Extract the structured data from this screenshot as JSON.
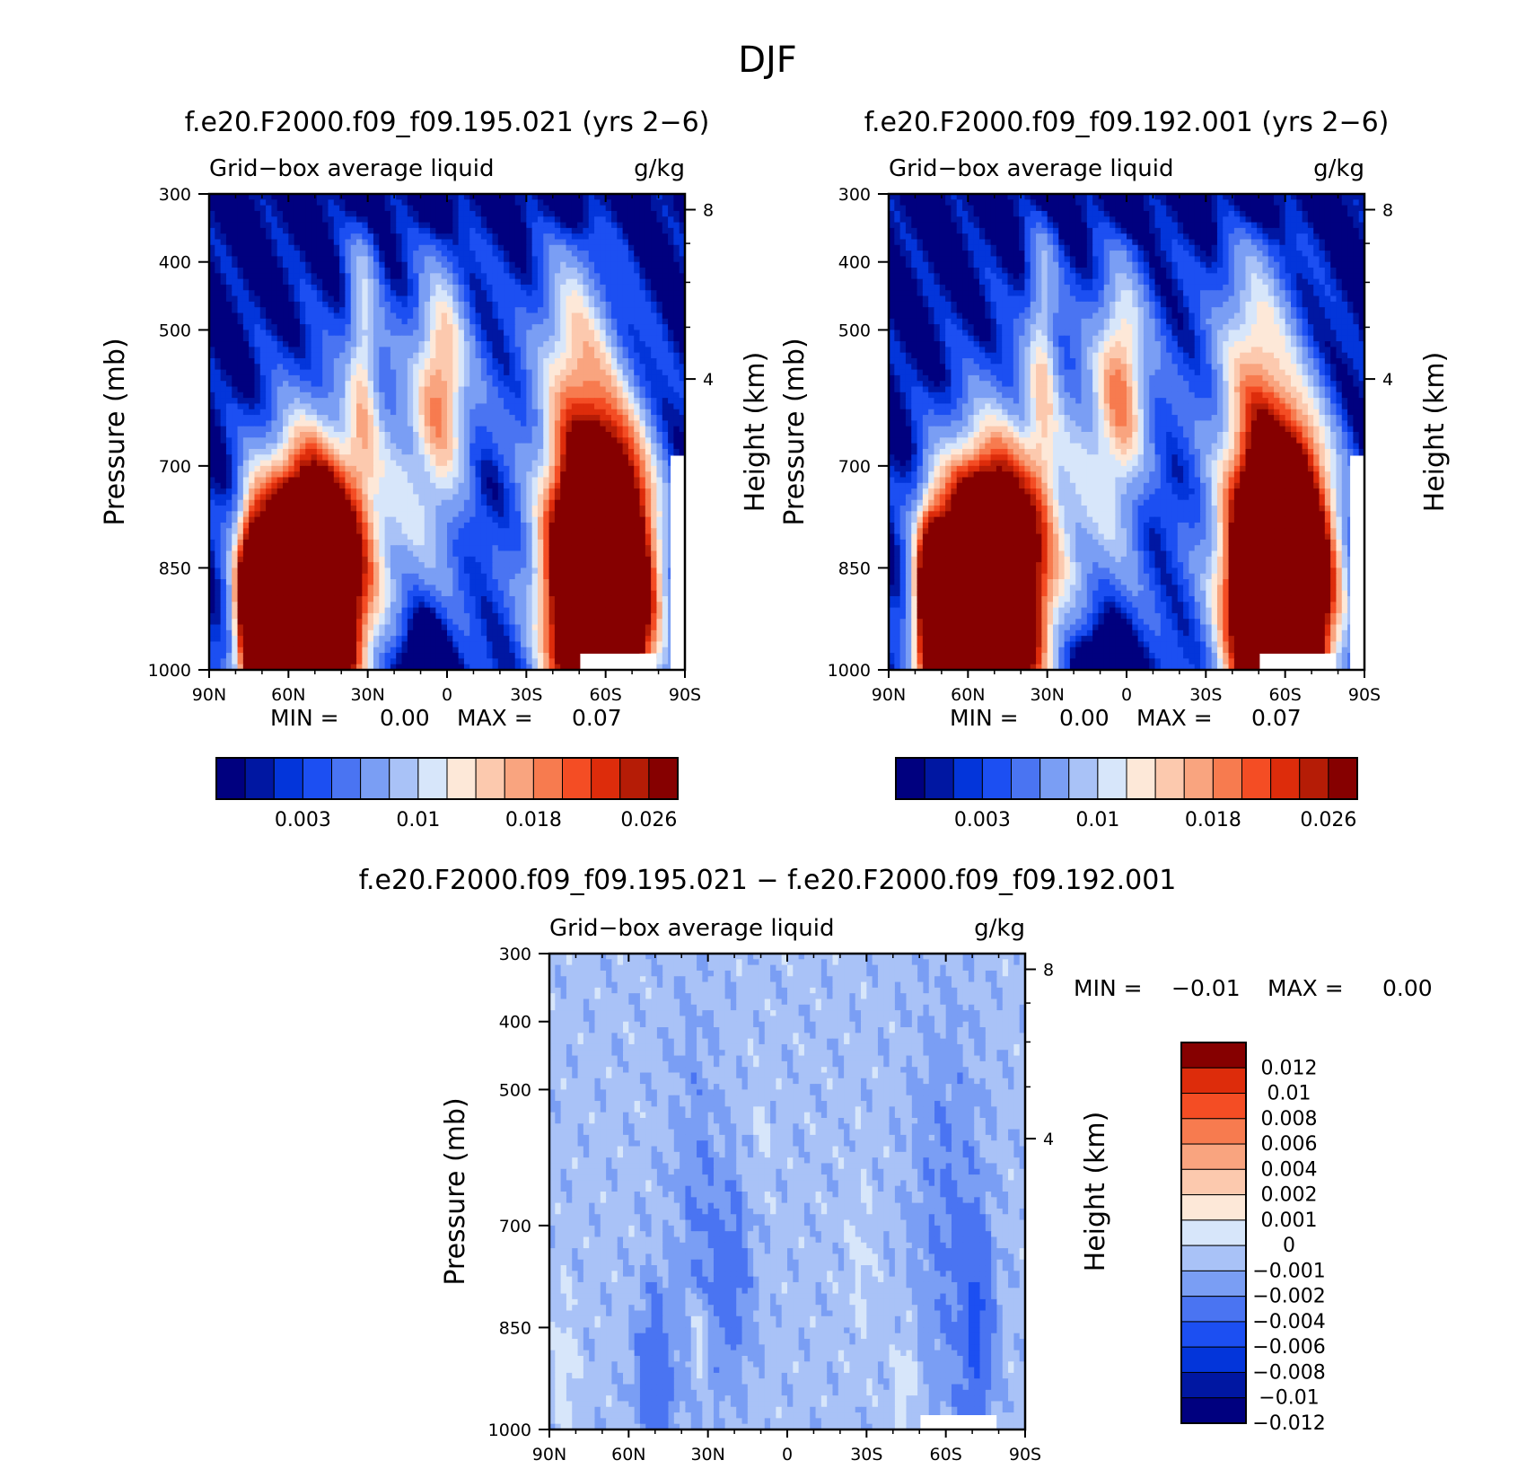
{
  "figure_title": "DJF",
  "colors": {
    "seq_scale": [
      "#00007f",
      "#0017a2",
      "#0335da",
      "#1c4ff2",
      "#4a74f2",
      "#7a9ef4",
      "#a9c2f7",
      "#d7e6fa",
      "#fde8d8",
      "#fcc9ae",
      "#f9a47f",
      "#f77b4f",
      "#f44d24",
      "#dd2c0b",
      "#b51c06",
      "#860000"
    ],
    "div_scale": [
      "#00007f",
      "#0017a2",
      "#0335da",
      "#1c4ff2",
      "#4a74f2",
      "#7a9ef4",
      "#a9c2f7",
      "#d7e6fa",
      "#fde8d8",
      "#fcc9ae",
      "#f9a47f",
      "#f77b4f",
      "#f44d24",
      "#dd2c0b",
      "#860000"
    ]
  },
  "chart_data": [
    {
      "type": "heatmap",
      "panel": "top-left",
      "title": "f.e20.F2000.f09_f09.195.021 (yrs 2−6)",
      "subtitle_left": "Grid−box average liquid",
      "subtitle_right": "g/kg",
      "xlabel": "",
      "ylabel": "Pressure (mb)",
      "ylabel_right": "Height (km)",
      "x_ticks": [
        "90N",
        "60N",
        "30N",
        "0",
        "30S",
        "60S",
        "90S"
      ],
      "y_ticks": [
        "300",
        "400",
        "500",
        "700",
        "850",
        "1000"
      ],
      "y_right_ticks": [
        "8",
        "4"
      ],
      "min_label": "MIN =",
      "min_value": "0.00",
      "max_label": "MAX =",
      "max_value": "0.07",
      "colorbar_labels": [
        "0.003",
        "0.01",
        "0.018",
        "0.026"
      ],
      "ylim": [
        300,
        1000
      ],
      "data_range": [
        0.0,
        0.07
      ]
    },
    {
      "type": "heatmap",
      "panel": "top-right",
      "title": "f.e20.F2000.f09_f09.192.001 (yrs 2−6)",
      "subtitle_left": "Grid−box average liquid",
      "subtitle_right": "g/kg",
      "xlabel": "",
      "ylabel": "Pressure (mb)",
      "ylabel_right": "Height (km)",
      "x_ticks": [
        "90N",
        "60N",
        "30N",
        "0",
        "30S",
        "60S",
        "90S"
      ],
      "y_ticks": [
        "300",
        "400",
        "500",
        "700",
        "850",
        "1000"
      ],
      "y_right_ticks": [
        "8",
        "4"
      ],
      "min_label": "MIN =",
      "min_value": "0.00",
      "max_label": "MAX =",
      "max_value": "0.07",
      "colorbar_labels": [
        "0.003",
        "0.01",
        "0.018",
        "0.026"
      ],
      "ylim": [
        300,
        1000
      ],
      "data_range": [
        0.0,
        0.07
      ]
    },
    {
      "type": "heatmap",
      "panel": "bottom",
      "title": "f.e20.F2000.f09_f09.195.021 − f.e20.F2000.f09_f09.192.001",
      "subtitle_left": "Grid−box average liquid",
      "subtitle_right": "g/kg",
      "xlabel": "",
      "ylabel": "Pressure (mb)",
      "ylabel_right": "Height (km)",
      "x_ticks": [
        "90N",
        "60N",
        "30N",
        "0",
        "30S",
        "60S",
        "90S"
      ],
      "y_ticks": [
        "300",
        "400",
        "500",
        "700",
        "850",
        "1000"
      ],
      "y_right_ticks": [
        "8",
        "4"
      ],
      "min_label": "MIN =",
      "min_value": "−0.01",
      "max_label": "MAX =",
      "max_value": "0.00",
      "colorbar_labels": [
        "0.012",
        "0.01",
        "0.008",
        "0.006",
        "0.004",
        "0.002",
        "0.001",
        "0",
        "−0.001",
        "−0.002",
        "−0.004",
        "−0.006",
        "−0.008",
        "−0.01",
        "−0.012"
      ],
      "ylim": [
        300,
        1000
      ],
      "data_range": [
        -0.01,
        0.0
      ]
    }
  ]
}
